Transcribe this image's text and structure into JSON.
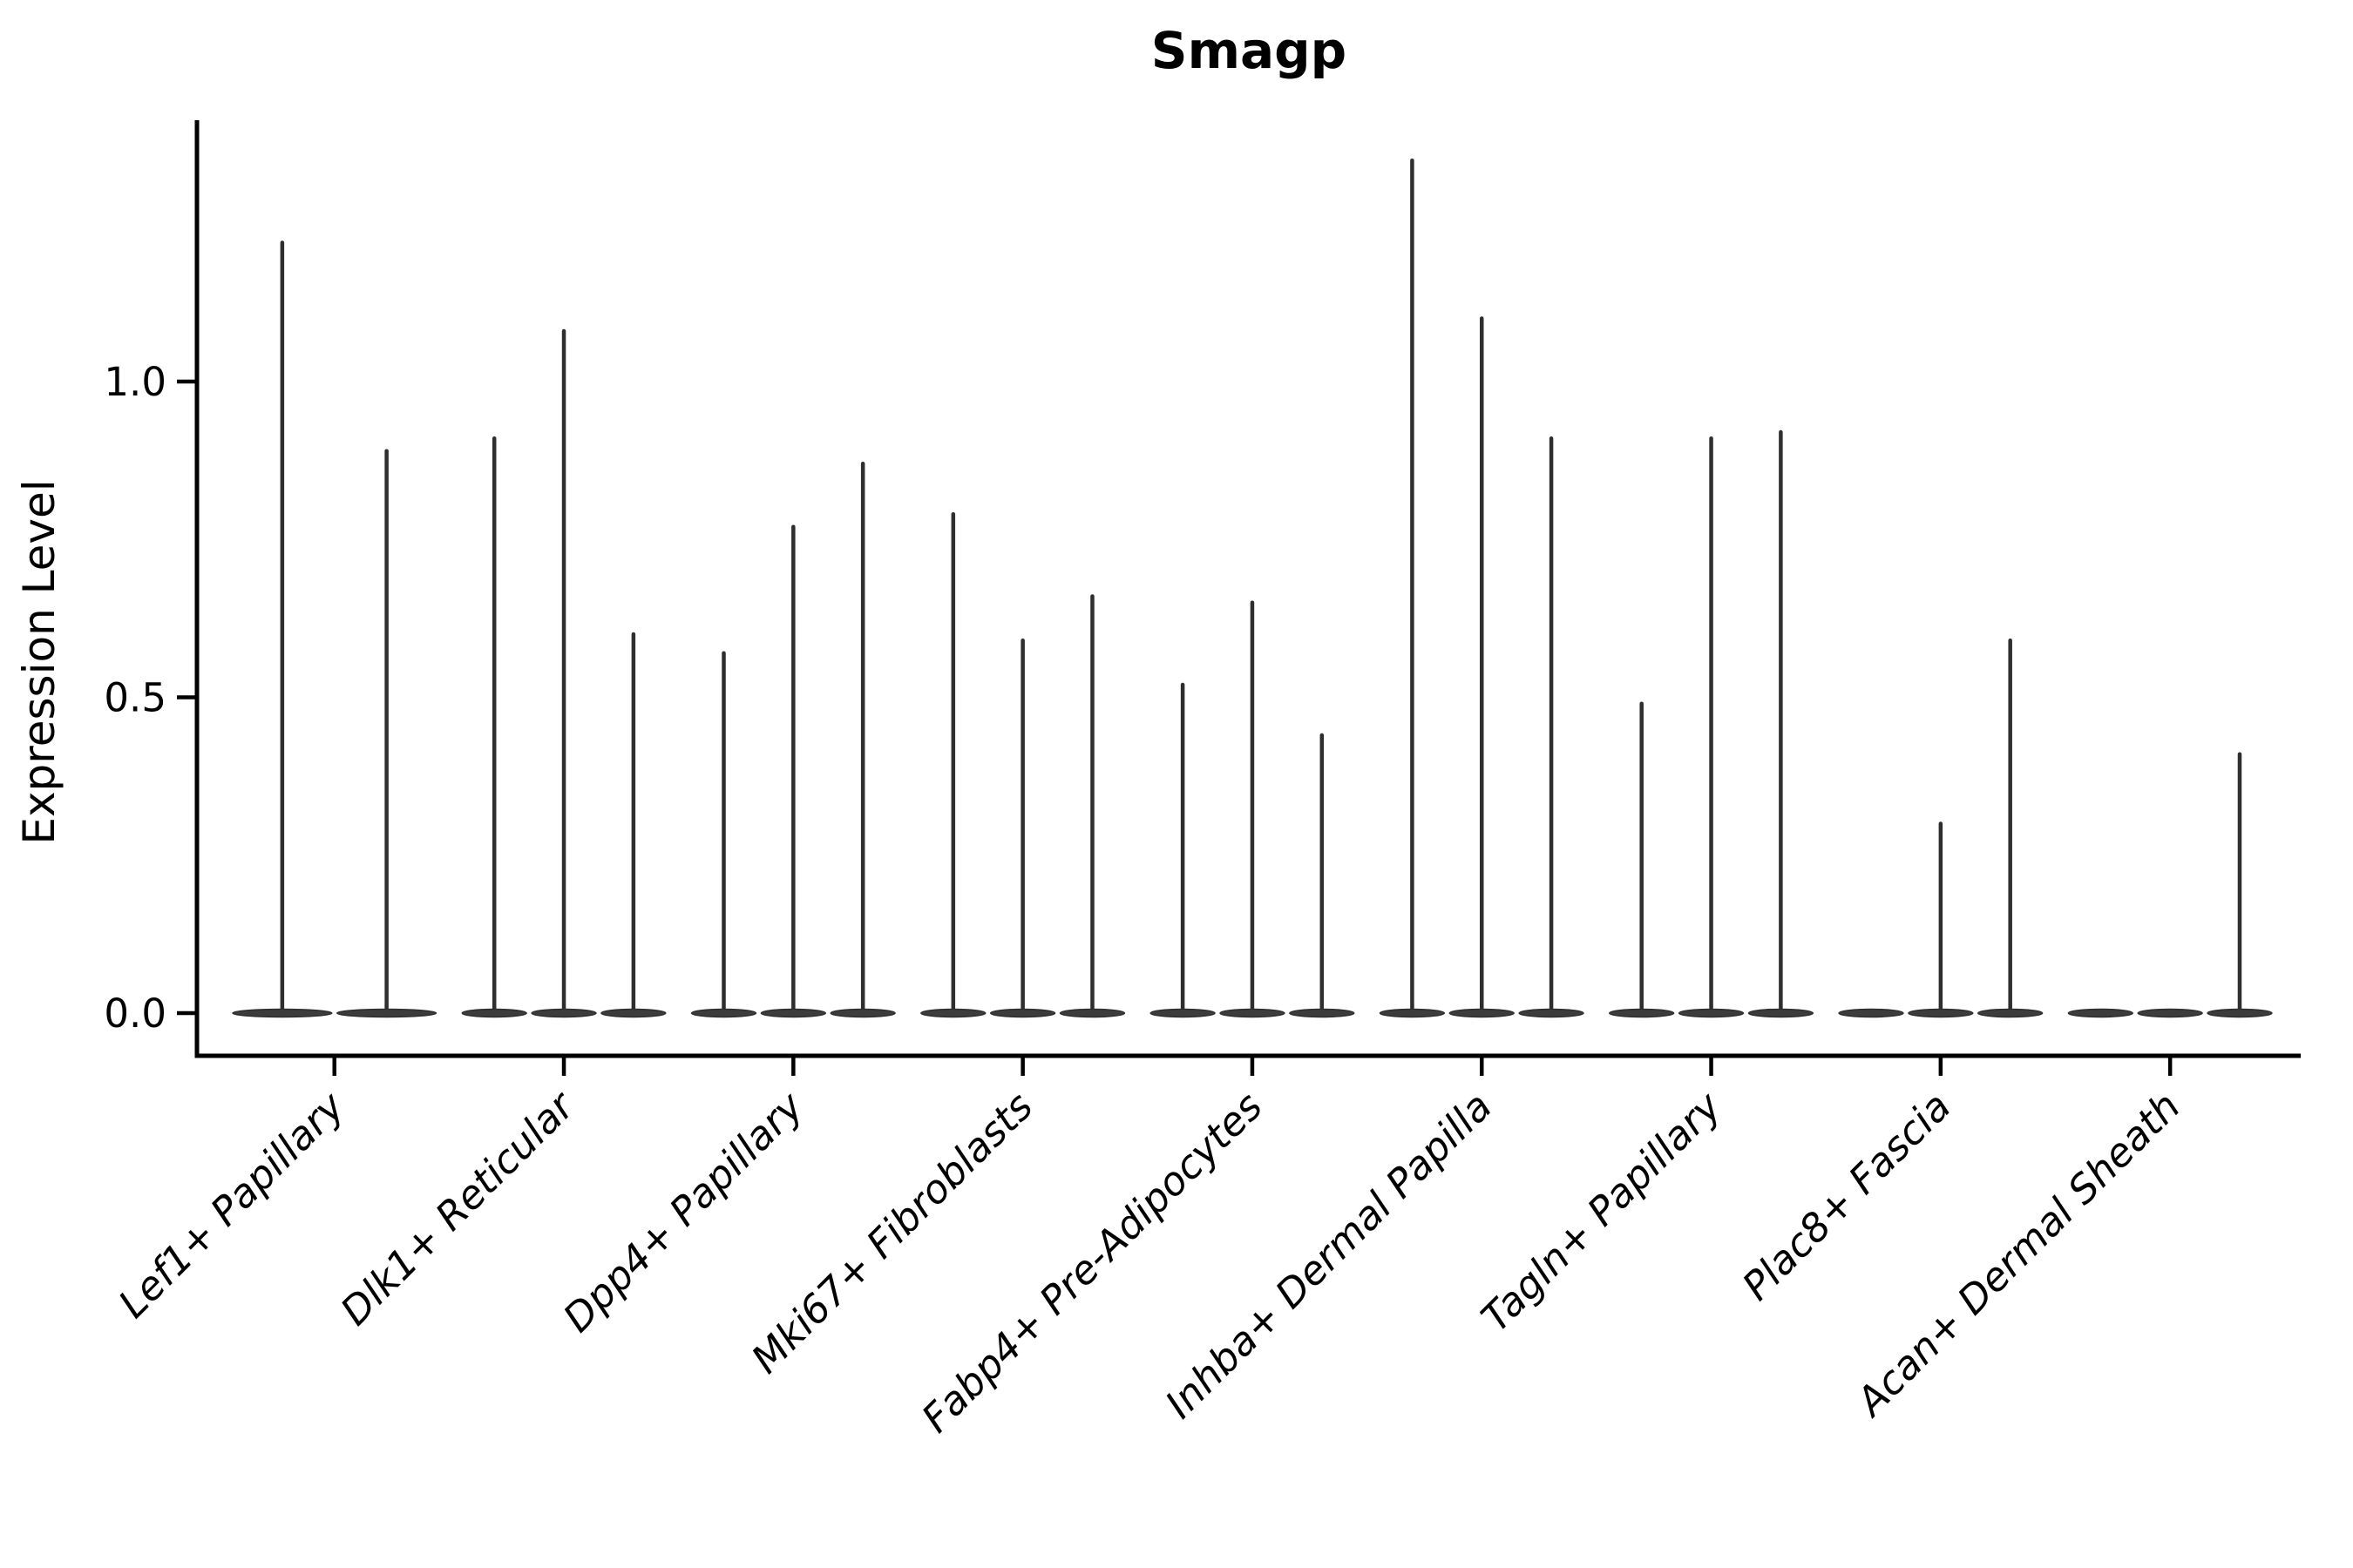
{
  "chart_data": {
    "type": "violin",
    "title": "Smagp",
    "xlabel": "",
    "ylabel": "Expression Level",
    "ylim": [
      -0.068,
      1.41
    ],
    "yticks": [
      0.0,
      0.5,
      1.0
    ],
    "ytick_labels": [
      "0.0",
      "0.5",
      "1.0"
    ],
    "grid": false,
    "legend": "none",
    "note": "Each cluster contains 2-3 extremely narrow violins: bulk of density is a flat lens at 0 with a thin spike rising to the maximum expression value.",
    "groups": [
      {
        "label": "Lef1+ Papillary",
        "violin_maxima": [
          1.22,
          0.89
        ]
      },
      {
        "label": "Dlk1+ Reticular",
        "violin_maxima": [
          0.91,
          1.08,
          0.6
        ]
      },
      {
        "label": "Dpp4+ Papillary",
        "violin_maxima": [
          0.57,
          0.77,
          0.87
        ]
      },
      {
        "label": "Mki67+ Fibroblasts",
        "violin_maxima": [
          0.79,
          0.59,
          0.66
        ]
      },
      {
        "label": "Fabp4+ Pre-Adipocytes",
        "violin_maxima": [
          0.52,
          0.65,
          0.44
        ]
      },
      {
        "label": "Inhba+ Dermal Papilla",
        "violin_maxima": [
          1.35,
          1.1,
          0.91
        ]
      },
      {
        "label": "Tagln+ Papillary",
        "violin_maxima": [
          0.49,
          0.91,
          0.92
        ]
      },
      {
        "label": "Plac8+ Fascia",
        "violin_maxima": [
          0.0,
          0.3,
          0.59
        ]
      },
      {
        "label": "Acan+ Dermal Sheath",
        "violin_maxima": [
          0.0,
          0.0,
          0.41
        ]
      }
    ],
    "colors": {
      "violin_fill": "#3c3c3c",
      "violin_stroke": "#2e2e2e",
      "axis": "#000000",
      "text": "#000000",
      "background": "#ffffff"
    }
  }
}
